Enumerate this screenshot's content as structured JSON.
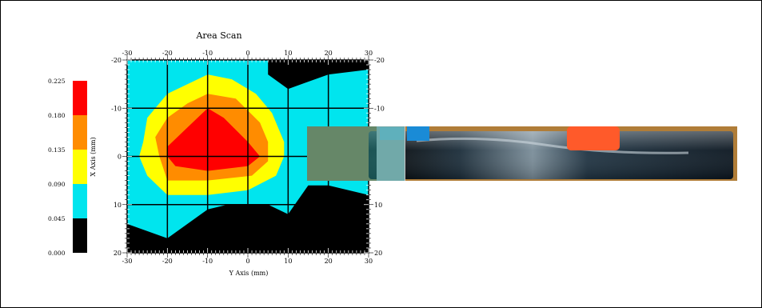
{
  "chart_data": {
    "type": "heatmap",
    "title": "Area Scan",
    "xlabel": "Y Axis (mm)",
    "ylabel": "X Axis (mm)",
    "xlim": [
      -30,
      30
    ],
    "ylim": [
      -20,
      20
    ],
    "x_ticks": [
      "-30",
      "-20",
      "-10",
      "0",
      "10",
      "20",
      "30"
    ],
    "y_ticks": [
      "-20",
      "-10",
      "0",
      "10",
      "20"
    ],
    "grid": true,
    "legend_position": "left",
    "colorbar": {
      "labels": [
        "0.225",
        "0.180",
        "0.135",
        "0.090",
        "0.045",
        "0.000"
      ],
      "bands": [
        {
          "from": 0.0,
          "to": 0.045,
          "color": "#000000"
        },
        {
          "from": 0.045,
          "to": 0.09,
          "color": "#00e5ee"
        },
        {
          "from": 0.09,
          "to": 0.135,
          "color": "#ffff00"
        },
        {
          "from": 0.135,
          "to": 0.18,
          "color": "#ff8c00"
        },
        {
          "from": 0.18,
          "to": 0.225,
          "color": "#ff0000"
        }
      ]
    },
    "regions": [
      {
        "name": "band-cyan",
        "value_band": "0.045-0.090",
        "color": "#00e5ee",
        "points": [
          [
            -30,
            -20
          ],
          [
            30,
            -20
          ],
          [
            30,
            8
          ],
          [
            20,
            6
          ],
          [
            15,
            6
          ],
          [
            10,
            12
          ],
          [
            5,
            10
          ],
          [
            -5,
            10
          ],
          [
            -10,
            11
          ],
          [
            -20,
            17
          ],
          [
            -30,
            14
          ]
        ]
      },
      {
        "name": "band-black-top",
        "value_band": "0.000-0.045",
        "color": "#000000",
        "points": [
          [
            5,
            -20
          ],
          [
            30,
            -20
          ],
          [
            30,
            -18
          ],
          [
            20,
            -17
          ],
          [
            10,
            -14
          ],
          [
            5,
            -17
          ]
        ]
      },
      {
        "name": "band-yellow",
        "value_band": "0.090-0.135",
        "color": "#ffff00",
        "points": [
          [
            -26,
            -3
          ],
          [
            -25,
            -8
          ],
          [
            -20,
            -13
          ],
          [
            -10,
            -17
          ],
          [
            -4,
            -16
          ],
          [
            2,
            -13
          ],
          [
            6,
            -9
          ],
          [
            9,
            -3
          ],
          [
            9,
            0
          ],
          [
            7,
            4
          ],
          [
            0,
            7
          ],
          [
            -10,
            8
          ],
          [
            -20,
            8
          ],
          [
            -25,
            4
          ],
          [
            -27,
            0
          ]
        ]
      },
      {
        "name": "band-orange",
        "value_band": "0.135-0.180",
        "color": "#ff8c00",
        "points": [
          [
            -23,
            -4
          ],
          [
            -20,
            -8
          ],
          [
            -15,
            -11
          ],
          [
            -10,
            -13
          ],
          [
            -3,
            -12
          ],
          [
            3,
            -7
          ],
          [
            5,
            -3
          ],
          [
            5,
            1
          ],
          [
            1,
            4
          ],
          [
            -10,
            5
          ],
          [
            -20,
            5
          ],
          [
            -22,
            0
          ]
        ]
      },
      {
        "name": "band-red",
        "value_band": "0.180-0.225",
        "color": "#ff0000",
        "points": [
          [
            -20,
            -2
          ],
          [
            -15,
            -6
          ],
          [
            -10,
            -10
          ],
          [
            -6,
            -8
          ],
          [
            0,
            -3
          ],
          [
            3,
            0
          ],
          [
            0,
            2
          ],
          [
            -10,
            3
          ],
          [
            -18,
            2
          ],
          [
            -20,
            0
          ]
        ]
      }
    ]
  }
}
